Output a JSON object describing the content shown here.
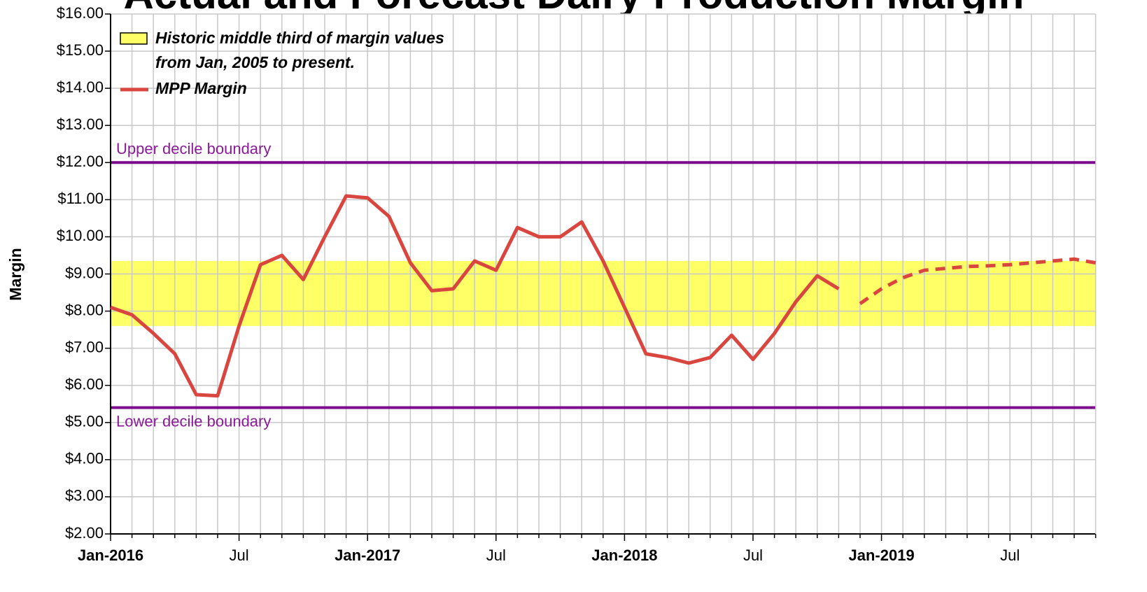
{
  "chart_data": {
    "type": "line",
    "title": "Actual and Forecast Dairy Production Margin",
    "y_label": "Margin",
    "categories": [
      "Jan-2016",
      null,
      null,
      null,
      null,
      null,
      "Jul",
      null,
      null,
      null,
      null,
      null,
      "Jan-2017",
      null,
      null,
      null,
      null,
      null,
      "Jul",
      null,
      null,
      null,
      null,
      null,
      "Jan-2018",
      null,
      null,
      null,
      null,
      null,
      "Jul",
      null,
      null,
      null,
      null,
      null,
      "Jan-2019",
      null,
      null,
      null,
      null,
      null,
      "Jul",
      null,
      null,
      null,
      null
    ],
    "series": [
      {
        "name": "MPP Margin",
        "color": "#d9463f",
        "dashed": false,
        "values": [
          8.1,
          7.9,
          7.4,
          6.85,
          5.75,
          5.72,
          7.6,
          9.25,
          9.5,
          8.85,
          10.0,
          11.1,
          11.05,
          10.55,
          9.3,
          8.55,
          8.6,
          9.35,
          9.1,
          10.25,
          10.0,
          10.0,
          10.4,
          9.35,
          8.1,
          6.85,
          6.75,
          6.6,
          6.75,
          7.35,
          6.7,
          7.4,
          8.25,
          8.95,
          8.6,
          null,
          null,
          null,
          null,
          null,
          null,
          null,
          null,
          null,
          null,
          null,
          null
        ]
      },
      {
        "color": "#d9463f",
        "dashed": true,
        "values": [
          null,
          null,
          null,
          null,
          null,
          null,
          null,
          null,
          null,
          null,
          null,
          null,
          null,
          null,
          null,
          null,
          null,
          null,
          null,
          null,
          null,
          null,
          null,
          null,
          null,
          null,
          null,
          null,
          null,
          null,
          null,
          null,
          null,
          null,
          null,
          8.2,
          8.6,
          8.9,
          9.1,
          9.15,
          9.2,
          9.22,
          9.25,
          9.3,
          9.35,
          9.4,
          9.3
        ]
      }
    ],
    "band": {
      "name": "Historic middle third of margin values",
      "name_line2": "from Jan, 2005 to present.",
      "low": 7.6,
      "high": 9.35,
      "color": "#ffff66"
    },
    "boundaries": [
      {
        "label": "Upper decile boundary",
        "value": 12.0,
        "color": "#7b0a8c"
      },
      {
        "label": "Lower decile boundary",
        "value": 5.4,
        "color": "#7b0a8c"
      }
    ],
    "ylim": [
      2,
      16
    ],
    "yticks": [
      {
        "value": 2,
        "label": "$2.00"
      },
      {
        "value": 3,
        "label": "$3.00"
      },
      {
        "value": 4,
        "label": "$4.00"
      },
      {
        "value": 5,
        "label": "$5.00"
      },
      {
        "value": 6,
        "label": "$6.00"
      },
      {
        "value": 7,
        "label": "$7.00"
      },
      {
        "value": 8,
        "label": "$8.00"
      },
      {
        "value": 9,
        "label": "$9.00"
      },
      {
        "value": 10,
        "label": "$10.00"
      },
      {
        "value": 11,
        "label": "$11.00"
      },
      {
        "value": 12,
        "label": "$12.00"
      },
      {
        "value": 13,
        "label": "$13.00"
      },
      {
        "value": 14,
        "label": "$14.00"
      },
      {
        "value": 15,
        "label": "$15.00"
      },
      {
        "value": 16,
        "label": "$16.00"
      }
    ],
    "grid": true
  }
}
